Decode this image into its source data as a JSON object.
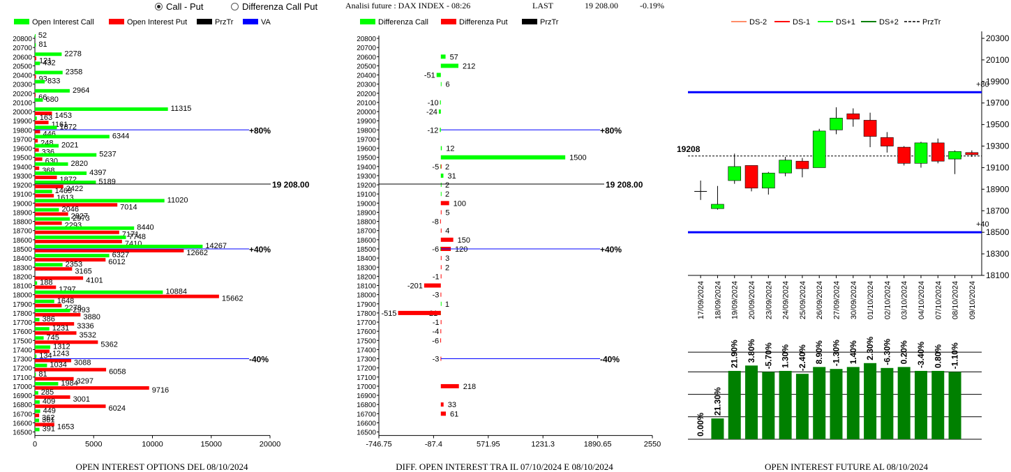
{
  "header": {
    "radio_call_put": "Call - Put",
    "radio_diff": "Differenza Call Put",
    "analysis_title": "Analisi future : DAX INDEX - 08:26",
    "last_label": "LAST",
    "last_value": "19 208.00",
    "change": "-0.19%"
  },
  "colors": {
    "call": "#00ff00",
    "put": "#ff0000",
    "prztr": "#000000",
    "va": "#0000ff",
    "future_bar": "#008000",
    "ds_minus2": "#ff8c69",
    "ds_minus1": "#ff0000",
    "ds_plus1": "#00ff00",
    "ds_plus2": "#008000"
  },
  "chart_data": [
    {
      "type": "bar",
      "orientation": "horizontal",
      "title": "OPEN INTEREST OPTIONS DEL 08/10/2024",
      "legend": [
        "Open Interest Call",
        "Open Interest Put",
        "PrzTr",
        "VA"
      ],
      "strikes": [
        20800,
        20700,
        20600,
        20500,
        20400,
        20300,
        20200,
        20100,
        20000,
        19900,
        19800,
        19700,
        19600,
        19500,
        19400,
        19300,
        19200,
        19100,
        19000,
        18900,
        18800,
        18700,
        18600,
        18500,
        18400,
        18300,
        18200,
        18100,
        18000,
        17900,
        17800,
        17700,
        17600,
        17500,
        17400,
        17300,
        17200,
        17100,
        17000,
        16900,
        16800,
        16700,
        16600,
        16500
      ],
      "series": [
        {
          "name": "Open Interest Call",
          "values": [
            52,
            81,
            2278,
            432,
            2358,
            833,
            2964,
            680,
            11315,
            163,
            1872,
            6344,
            2021,
            5237,
            2820,
            4397,
            5189,
            1465,
            11020,
            2046,
            2973,
            8440,
            7748,
            14267,
            6327,
            2353,
            null,
            188,
            10884,
            1648,
            2993,
            386,
            1231,
            745,
            1312,
            134,
            1034,
            81,
            1984,
            285,
            409,
            449,
            361,
            391
          ]
        },
        {
          "name": "Open Interest Put",
          "values": [
            null,
            null,
            121,
            null,
            93,
            null,
            66,
            null,
            1453,
            1161,
            446,
            248,
            336,
            630,
            368,
            1872,
            2422,
            1613,
            7014,
            2827,
            2293,
            7171,
            7410,
            12662,
            6012,
            3165,
            4101,
            1797,
            15662,
            2278,
            3880,
            3336,
            3532,
            5362,
            1243,
            3088,
            6058,
            3297,
            9716,
            3001,
            6024,
            362,
            1653,
            null
          ]
        }
      ],
      "lines": [
        {
          "label": "+80%",
          "strike": 19800
        },
        {
          "label": "19 208.00",
          "strike": 19208
        },
        {
          "label": "+40%",
          "strike": 18500
        },
        {
          "label": "-40%",
          "strike": 17300
        }
      ],
      "xticks": [
        "0",
        "5000",
        "10000",
        "15000",
        "20000"
      ],
      "xlim": [
        0,
        20000
      ]
    },
    {
      "type": "bar",
      "orientation": "horizontal",
      "title": "DIFF. OPEN INTEREST TRA IL 07/10/2024 E 08/10/2024",
      "legend": [
        "Differenza Call",
        "Differenza Put",
        "PrzTr"
      ],
      "strikes": [
        20800,
        20700,
        20600,
        20500,
        20400,
        20300,
        20200,
        20100,
        20000,
        19900,
        19800,
        19700,
        19600,
        19500,
        19400,
        19300,
        19200,
        19100,
        19000,
        18900,
        18800,
        18700,
        18600,
        18500,
        18400,
        18300,
        18200,
        18100,
        18000,
        17900,
        17800,
        17700,
        17600,
        17500,
        17400,
        17300,
        17200,
        17100,
        17000,
        16900,
        16800,
        16700,
        16600,
        16500
      ],
      "series": [
        {
          "name": "Differenza Call",
          "values": [
            null,
            null,
            57,
            212,
            -51,
            6,
            null,
            -10,
            -24,
            null,
            -12,
            null,
            12,
            1500,
            -5,
            31,
            2,
            2,
            null,
            null,
            null,
            null,
            null,
            -6,
            null,
            null,
            null,
            null,
            null,
            1,
            -21,
            null,
            null,
            null,
            null,
            null,
            null,
            null,
            null,
            null,
            null,
            null,
            null,
            null
          ]
        },
        {
          "name": "Differenza Put",
          "values": [
            null,
            null,
            null,
            null,
            null,
            null,
            null,
            null,
            null,
            null,
            null,
            null,
            null,
            null,
            2,
            null,
            null,
            null,
            100,
            5,
            -8,
            4,
            150,
            120,
            3,
            2,
            -1,
            -201,
            -3,
            null,
            -515,
            -1,
            -4,
            -6,
            null,
            -3,
            null,
            null,
            218,
            null,
            33,
            61,
            null,
            null
          ]
        }
      ],
      "lines": [
        {
          "label": "+80%",
          "strike": 19800
        },
        {
          "label": "19 208.00",
          "strike": 19208
        },
        {
          "label": "+40%",
          "strike": 18500
        },
        {
          "label": "-40%",
          "strike": 17300
        }
      ],
      "xticks": [
        "-746.75",
        "-87.4",
        "571.95",
        "1231.3",
        "1890.65",
        "2550"
      ],
      "xlim": [
        -746.75,
        2550
      ]
    },
    {
      "type": "candlestick",
      "legend": [
        "DS-2",
        "DS-1",
        "DS+1",
        "DS+2",
        "PrzTr"
      ],
      "dates": [
        "17/09/2024",
        "18/09/2024",
        "19/09/2024",
        "20/09/2024",
        "23/09/2024",
        "24/09/2024",
        "25/09/2024",
        "26/09/2024",
        "27/09/2024",
        "30/09/2024",
        "01/10/2024",
        "02/10/2024",
        "03/10/2024",
        "04/10/2024",
        "07/10/2024",
        "08/10/2024",
        "09/10/2024"
      ],
      "ohlc": [
        [
          18880,
          18980,
          18800,
          18880
        ],
        [
          18720,
          18930,
          18710,
          18760
        ],
        [
          18980,
          19230,
          18950,
          19110
        ],
        [
          19120,
          19120,
          18880,
          18910
        ],
        [
          18910,
          19060,
          18850,
          19050
        ],
        [
          19050,
          19200,
          19020,
          19170
        ],
        [
          19160,
          19190,
          19010,
          19090
        ],
        [
          19100,
          19460,
          19100,
          19440
        ],
        [
          19450,
          19660,
          19410,
          19560
        ],
        [
          19600,
          19650,
          19480,
          19550
        ],
        [
          19540,
          19610,
          19290,
          19390
        ],
        [
          19380,
          19430,
          19240,
          19300
        ],
        [
          19290,
          19300,
          19120,
          19140
        ],
        [
          19140,
          19340,
          19100,
          19330
        ],
        [
          19330,
          19370,
          19140,
          19160
        ],
        [
          19180,
          19260,
          19040,
          19250
        ],
        [
          19240,
          19260,
          19200,
          19220
        ]
      ],
      "prztr": 19208,
      "prztr_label": "19208",
      "levels": [
        {
          "label": "+80",
          "value": 19800
        },
        {
          "label": "+40",
          "value": 18500
        }
      ],
      "yticks": [
        "20300",
        "20100",
        "19900",
        "19700",
        "19500",
        "19300",
        "19100",
        "18900",
        "18700",
        "18500",
        "18300",
        "18100"
      ],
      "ylim": [
        18100,
        20300
      ]
    },
    {
      "type": "bar",
      "title": "OPEN INTEREST FUTURE AL 08/10/2024",
      "categories": [
        "17/09/2024",
        "18/09/2024",
        "19/09/2024",
        "20/09/2024",
        "23/09/2024",
        "24/09/2024",
        "25/09/2024",
        "26/09/2024",
        "27/09/2024",
        "30/09/2024",
        "01/10/2024",
        "02/10/2024",
        "03/10/2024",
        "04/10/2024",
        "07/10/2024",
        "08/10/2024",
        "09/10/2024"
      ],
      "values": [
        0,
        0.213,
        0.7,
        0.755,
        0.69,
        0.7,
        0.67,
        0.74,
        0.72,
        0.74,
        0.78,
        0.73,
        0.74,
        0.7,
        0.7,
        0.69,
        null
      ],
      "labels": [
        "0.00%",
        "21.30%",
        "21.90%",
        "3.80%",
        "-5.70%",
        "1.30%",
        "-2.40%",
        "8.90%",
        "-1.30%",
        "1.40%",
        "2.30%",
        "-6.30%",
        "0.20%",
        "-3.40%",
        "0.80%",
        "-1.10%",
        ""
      ]
    }
  ]
}
